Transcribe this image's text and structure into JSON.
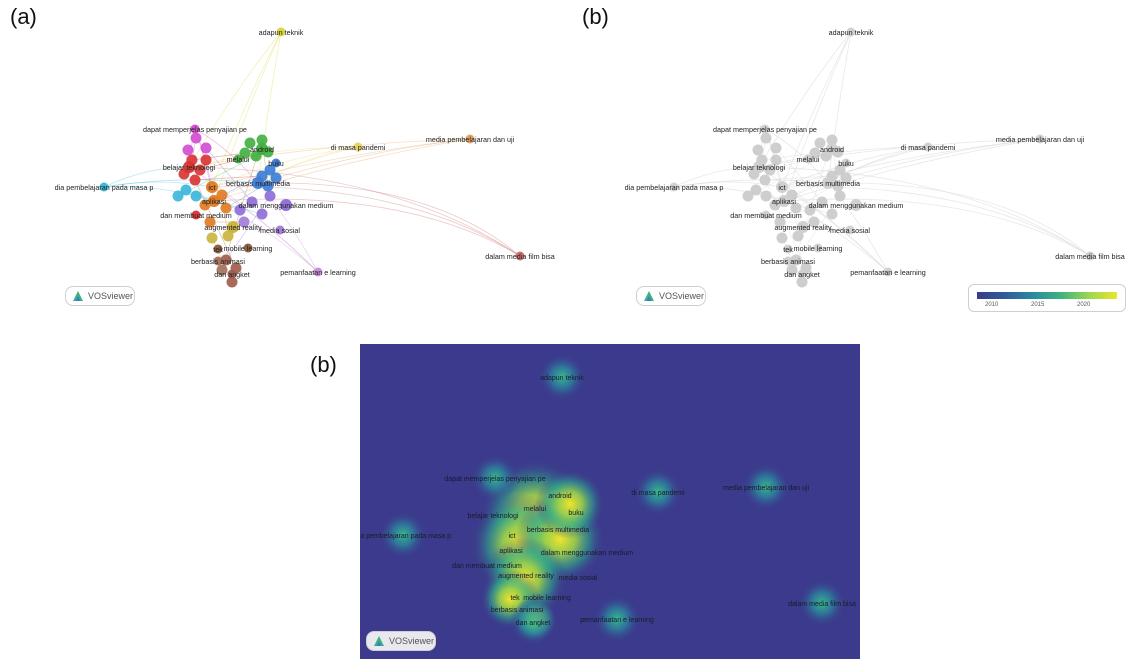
{
  "panels": {
    "a": {
      "label": "(a)"
    },
    "b_top": {
      "label": "(b)"
    },
    "b_bottom": {
      "label": "(b)"
    }
  },
  "brand": {
    "name": "VOSviewer"
  },
  "legend": {
    "ticks": [
      "2010",
      "2015",
      "2020"
    ],
    "colors": [
      "#3b3b8a",
      "#2a8aa0",
      "#3fb37e",
      "#e9e62a"
    ]
  },
  "terms": [
    {
      "id": "adapun",
      "label": "adapun teknik",
      "cluster_color": "#d8d43a",
      "year_color": "#cfcfcf"
    },
    {
      "id": "dapat",
      "label": "dapat memperjelas penyajian pe",
      "cluster_color": "#d04bd0",
      "year_color": "#cfcfcf"
    },
    {
      "id": "media_uji",
      "label": "media pembelajaran dan uji",
      "cluster_color": "#e2a060",
      "year_color": "#cfcfcf"
    },
    {
      "id": "pandemi",
      "label": "di masa pandemi",
      "cluster_color": "#e8d060",
      "year_color": "#cfcfcf"
    },
    {
      "id": "android",
      "label": "android",
      "cluster_color": "#3fae3f",
      "year_color": "#cfcfcf"
    },
    {
      "id": "melalui",
      "label": "melalui",
      "cluster_color": "#3fae3f",
      "year_color": "#cfcfcf"
    },
    {
      "id": "buku",
      "label": "buku",
      "cluster_color": "#3a7bd5",
      "year_color": "#cfcfcf"
    },
    {
      "id": "belajar",
      "label": "belajar teknologi",
      "cluster_color": "#d83232",
      "year_color": "#cfcfcf"
    },
    {
      "id": "masa_p",
      "label": "dia pembelajaran pada masa p",
      "cluster_color": "#38b6d8",
      "year_color": "#cfcfcf"
    },
    {
      "id": "ict",
      "label": "ict",
      "cluster_color": "#e07a20",
      "year_color": "#cfcfcf"
    },
    {
      "id": "multimedia",
      "label": "berbasis multimedia",
      "cluster_color": "#3a7bd5",
      "year_color": "#cfcfcf"
    },
    {
      "id": "aplikasi",
      "label": "aplikasi",
      "cluster_color": "#e07a20",
      "year_color": "#cfcfcf"
    },
    {
      "id": "menggunakan",
      "label": "dalam menggunakan medium",
      "cluster_color": "#8d6ad8",
      "year_color": "#cfcfcf"
    },
    {
      "id": "membuat",
      "label": "dan membuat medium",
      "cluster_color": "#d83232",
      "year_color": "#cfcfcf"
    },
    {
      "id": "augmented",
      "label": "augmented reality",
      "cluster_color": "#c9b23a",
      "year_color": "#cfcfcf"
    },
    {
      "id": "sosial",
      "label": "media sosial",
      "cluster_color": "#a07ad8",
      "year_color": "#cfcfcf"
    },
    {
      "id": "tek",
      "label": "tek",
      "cluster_color": "#8a5a3a",
      "year_color": "#cfcfcf"
    },
    {
      "id": "mobile",
      "label": "mobile learning",
      "cluster_color": "#8a5a3a",
      "year_color": "#cfcfcf"
    },
    {
      "id": "animasi",
      "label": "berbasis animasi",
      "cluster_color": "#a0705a",
      "year_color": "#cfcfcf"
    },
    {
      "id": "angket",
      "label": "dan angket",
      "cluster_color": "#a05a4a",
      "year_color": "#cfcfcf"
    },
    {
      "id": "elearning",
      "label": "pemanfaatan e learning",
      "cluster_color": "#c88ad8",
      "year_color": "#cfcfcf"
    },
    {
      "id": "film",
      "label": "dalam media film bisa",
      "cluster_color": "#c86a6a",
      "year_color": "#cfcfcf"
    }
  ]
}
